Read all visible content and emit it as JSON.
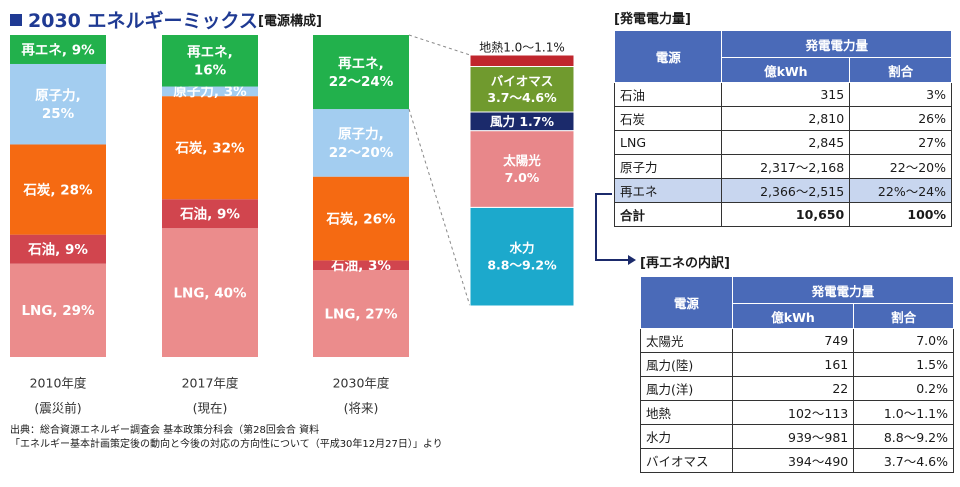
{
  "title": "2030 エネルギーミックス",
  "subtitle": "[電源構成]",
  "colors": {
    "renewable": "#22b14c",
    "nuclear": "#a3cdf0",
    "coal": "#f56a12",
    "oil": "#d1454e",
    "lng": "#eb8c8c",
    "geothermal": "#c0262d",
    "biomass": "#709a2e",
    "wind": "#1b2a6b",
    "solar": "#e8878a",
    "hydro": "#1ca9cc",
    "header": "#4a6ab8",
    "title": "#1f3a93"
  },
  "chart_data": {
    "type": "bar",
    "stacked": true,
    "percent_scale": true,
    "categories": [
      "2010年度",
      "2017年度",
      "2030年度"
    ],
    "category_notes": [
      "(震災前)",
      "(現在)",
      "(将来)"
    ],
    "series": [
      {
        "name": "LNG",
        "key": "lng",
        "values": [
          29,
          40,
          27
        ],
        "labels": [
          "LNG, 29%",
          "LNG, 40%",
          "LNG, 27%"
        ]
      },
      {
        "name": "石油",
        "key": "oil",
        "values": [
          9,
          9,
          3
        ],
        "labels": [
          "石油, 9%",
          "石油, 9%",
          "石油, 3%"
        ]
      },
      {
        "name": "石炭",
        "key": "coal",
        "values": [
          28,
          32,
          26
        ],
        "labels": [
          "石炭, 28%",
          "石炭, 32%",
          "石炭, 26%"
        ]
      },
      {
        "name": "原子力",
        "key": "nuclear",
        "values": [
          25,
          3,
          21
        ],
        "labels": [
          "原子力,|25%",
          "原子力, 3%",
          "原子力,|22〜20%"
        ]
      },
      {
        "name": "再エネ",
        "key": "renewable",
        "values": [
          9,
          16,
          23
        ],
        "labels": [
          "再エネ, 9%",
          "再エネ,|16%",
          "再エネ,|22〜24%"
        ]
      }
    ],
    "breakdown": {
      "of": "再エネ 2030年度",
      "items": [
        {
          "name": "水力",
          "key": "hydro",
          "value": 9.0,
          "label": "水力|8.8〜9.2%"
        },
        {
          "name": "太陽光",
          "key": "solar",
          "value": 7.0,
          "label": "太陽光|7.0%"
        },
        {
          "name": "風力",
          "key": "wind",
          "value": 1.7,
          "label": "風力 1.7%"
        },
        {
          "name": "バイオマス",
          "key": "biomass",
          "value": 4.15,
          "label": "バイオマス|3.7〜4.6%"
        },
        {
          "name": "地熱",
          "key": "geothermal",
          "value": 1.05,
          "label": "地熱1.0〜1.1%"
        }
      ]
    }
  },
  "source_lines": [
    "出典：総合資源エネルギー調査会 基本政策分科会（第28回会合 資料",
    "「エネルギー基本計画策定後の動向と今後の対応の方向性について（平成30年12月27日）」より"
  ],
  "table1": {
    "title": "[発電電力量]",
    "header_source": "電源",
    "header_group": "発電電力量",
    "header_kwh": "億kWh",
    "header_ratio": "割合",
    "rows": [
      {
        "name": "石油",
        "kwh": "315",
        "ratio": "3%"
      },
      {
        "name": "石炭",
        "kwh": "2,810",
        "ratio": "26%"
      },
      {
        "name": "LNG",
        "kwh": "2,845",
        "ratio": "27%"
      },
      {
        "name": "原子力",
        "kwh": "2,317〜2,168",
        "ratio": "22〜20%"
      },
      {
        "name": "再エネ",
        "kwh": "2,366〜2,515",
        "ratio": "22%〜24%"
      },
      {
        "name": "合計",
        "kwh": "10,650",
        "ratio": "100%"
      }
    ]
  },
  "table2": {
    "title": "[再エネの内訳]",
    "header_source": "電源",
    "header_group": "発電電力量",
    "header_kwh": "億kWh",
    "header_ratio": "割合",
    "rows": [
      {
        "name": "太陽光",
        "kwh": "749",
        "ratio": "7.0%"
      },
      {
        "name": "風力(陸)",
        "kwh": "161",
        "ratio": "1.5%"
      },
      {
        "name": "風力(洋)",
        "kwh": "22",
        "ratio": "0.2%"
      },
      {
        "name": "地熱",
        "kwh": "102〜113",
        "ratio": "1.0〜1.1%"
      },
      {
        "name": "水力",
        "kwh": "939〜981",
        "ratio": "8.8〜9.2%"
      },
      {
        "name": "バイオマス",
        "kwh": "394〜490",
        "ratio": "3.7〜4.6%"
      }
    ]
  }
}
